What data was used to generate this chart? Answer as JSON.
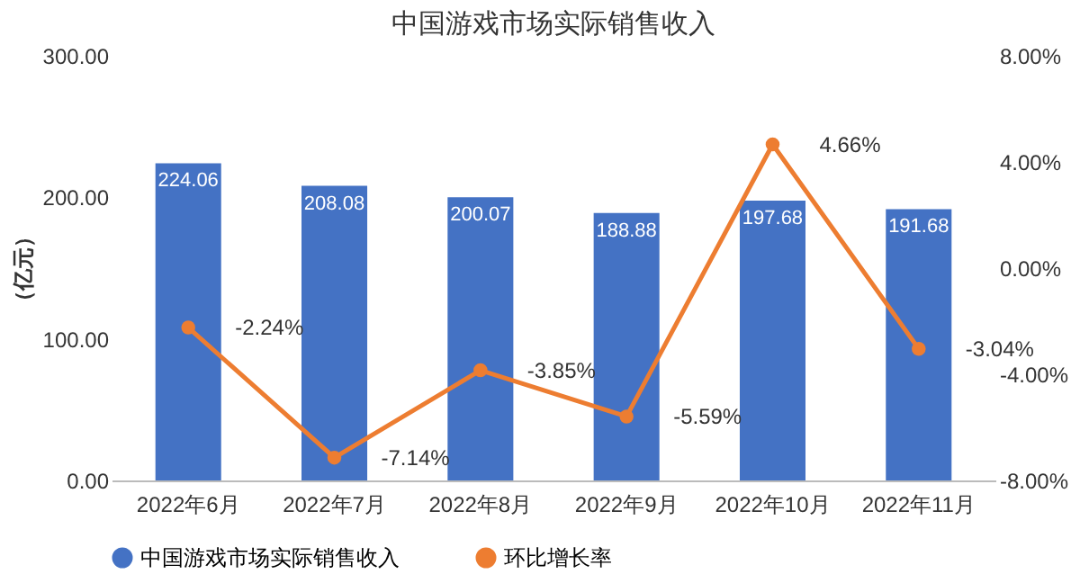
{
  "chart_data": {
    "type": "bar",
    "title": "中国游戏市场实际销售收入",
    "ylabel": "（亿元）",
    "categories": [
      "2022年6月",
      "2022年7月",
      "2022年8月",
      "2022年9月",
      "2022年10月",
      "2022年11月"
    ],
    "series": [
      {
        "name": "中国游戏市场实际销售收入",
        "color": "#4472c4",
        "values": [
          224.06,
          208.08,
          200.07,
          188.88,
          197.68,
          191.68
        ],
        "value_labels": [
          "224.06",
          "208.08",
          "200.07",
          "188.88",
          "197.68",
          "191.68"
        ]
      },
      {
        "name": "环比增长率",
        "type": "line",
        "axis": "y2",
        "color": "#ed7d31",
        "values": [
          -2.24,
          -7.14,
          -3.85,
          -5.59,
          4.66,
          -3.04
        ],
        "value_labels": [
          "-2.24%",
          "-7.14%",
          "-3.85%",
          "-5.59%",
          "4.66%",
          "-3.04%"
        ]
      }
    ],
    "ylim": [
      0,
      300
    ],
    "yticks": [
      {
        "value": 0,
        "label": "0.00"
      },
      {
        "value": 100,
        "label": "100.00"
      },
      {
        "value": 200,
        "label": "200.00"
      },
      {
        "value": 300,
        "label": "300.00"
      }
    ],
    "y2lim": [
      -8,
      8
    ],
    "y2ticks": [
      {
        "value": -8,
        "label": "-8.00%"
      },
      {
        "value": -4,
        "label": "-4.00%"
      },
      {
        "value": 0,
        "label": "0.00%"
      },
      {
        "value": 4,
        "label": "4.00%"
      },
      {
        "value": 8,
        "label": "8.00%"
      }
    ],
    "legend": "bottom",
    "marker": "circle",
    "grid": false
  }
}
